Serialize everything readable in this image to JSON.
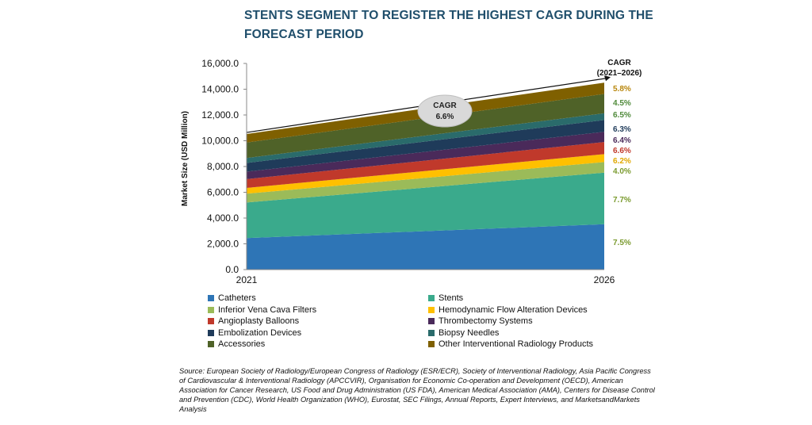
{
  "chart_data": {
    "type": "area",
    "title": "STENTS SEGMENT TO REGISTER THE HIGHEST CAGR DURING THE FORECAST PERIOD",
    "ylabel": "Market Size (USD Million)",
    "xlabel": "",
    "x": [
      "2021",
      "2026"
    ],
    "ylim": [
      0,
      16000
    ],
    "yticks": [
      "0.0",
      "2,000.0",
      "4,000.0",
      "6,000.0",
      "8,000.0",
      "10,000.0",
      "12,000.0",
      "14,000.0",
      "16,000.0"
    ],
    "ytick_values": [
      0,
      2000,
      4000,
      6000,
      8000,
      10000,
      12000,
      14000,
      16000
    ],
    "stacked": true,
    "grid": false,
    "legend_position": "bottom",
    "series": [
      {
        "name": "Catheters",
        "values": [
          2450,
          3520
        ],
        "color": "#2e75b6",
        "cagr": "7.5%"
      },
      {
        "name": "Stents",
        "values": [
          2760,
          4000
        ],
        "color": "#3aaa8c",
        "cagr": "7.7%"
      },
      {
        "name": "Inferior Vena Cava Filters",
        "values": [
          680,
          830
        ],
        "color": "#9bbb59",
        "cagr": "4.0%"
      },
      {
        "name": "Hemodynamic Flow Alteration Devices",
        "values": [
          450,
          610
        ],
        "color": "#ffc000",
        "cagr": "6.2%"
      },
      {
        "name": "Angioplasty Balloons",
        "values": [
          680,
          940
        ],
        "color": "#c0392b",
        "cagr": "6.6%"
      },
      {
        "name": "Thrombectomy Systems",
        "values": [
          580,
          790
        ],
        "color": "#4a2a5a",
        "cagr": "6.4%"
      },
      {
        "name": "Embolization Devices",
        "values": [
          680,
          920
        ],
        "color": "#1f3b5a",
        "cagr": "6.3%"
      },
      {
        "name": "Biopsy Needles",
        "values": [
          380,
          520
        ],
        "color": "#2a6b6b",
        "cagr": "6.5%"
      },
      {
        "name": "Accessories",
        "values": [
          1200,
          1500
        ],
        "color": "#4f6228",
        "cagr": "4.5%"
      },
      {
        "name": "Other Interventional Radiology Products",
        "values": [
          660,
          880
        ],
        "color": "#7f6000",
        "cagr": "5.8%"
      }
    ],
    "cagr_header": [
      "CAGR",
      "(2021–2026)"
    ],
    "cagr_label_colors": [
      "#7a9a2e",
      "#7a9a2e",
      "#7a9a2e",
      "#e0a800",
      "#c0392b",
      "#4a2a5a",
      "#1f3b5a",
      "#4f8a3a",
      "#4f8a3a",
      "#b8860b"
    ],
    "annotation": {
      "line1": "CAGR",
      "line2": "6.6%"
    }
  },
  "legend_layout": [
    [
      "Catheters",
      "Stents"
    ],
    [
      "Inferior Vena Cava Filters",
      "Hemodynamic Flow Alteration Devices"
    ],
    [
      "Angioplasty Balloons",
      "Thrombectomy Systems"
    ],
    [
      "Embolization Devices",
      "Biopsy Needles"
    ],
    [
      "Accessories",
      "Other Interventional Radiology Products"
    ]
  ],
  "source": "Source: European Society of Radiology/European Congress of Radiology (ESR/ECR), Society of Interventional Radiology, Asia Pacific Congress of Cardiovascular & Interventional Radiology (APCCVIR), Organisation for Economic Co-operation and Development (OECD), American Association for Cancer Research, US Food and Drug Administration (US FDA), American Medical Association (AMA), Centers for Disease Control and Prevention (CDC), World Health Organization (WHO), Eurostat, SEC Filings, Annual Reports, Expert Interviews, and MarketsandMarkets Analysis"
}
